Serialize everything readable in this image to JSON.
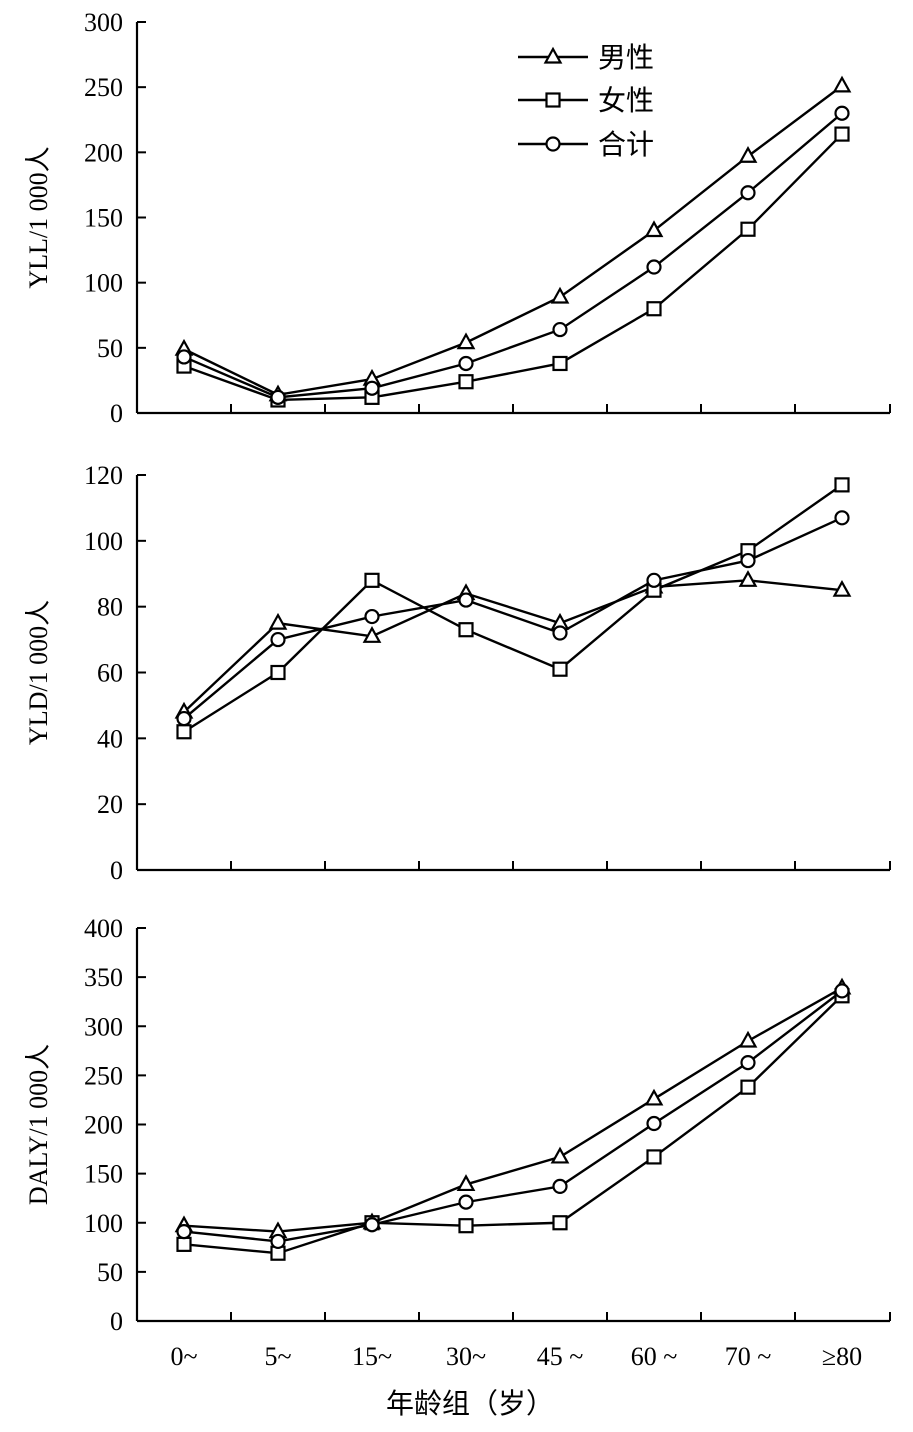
{
  "chart_data": [
    {
      "type": "line",
      "ylabel": "YLL/1 000人",
      "ylim": [
        0,
        300
      ],
      "yticks": [
        0,
        50,
        100,
        150,
        200,
        250,
        300
      ],
      "categories": [
        "0~",
        "5~",
        "15~",
        "30~",
        "45 ~",
        "60 ~",
        "70 ~",
        "≥80"
      ],
      "series": [
        {
          "name": "男性",
          "marker": "triangle",
          "values": [
            49,
            14,
            26,
            54,
            89,
            140,
            197,
            251
          ]
        },
        {
          "name": "女性",
          "marker": "square",
          "values": [
            36,
            10,
            12,
            24,
            38,
            80,
            141,
            214
          ]
        },
        {
          "name": "合计",
          "marker": "circle",
          "values": [
            43,
            12,
            19,
            38,
            64,
            112,
            169,
            230
          ]
        }
      ],
      "legend": {
        "position": "top-center",
        "entries": [
          "男性",
          "女性",
          "合计"
        ]
      }
    },
    {
      "type": "line",
      "ylabel": "YLD/1 000人",
      "ylim": [
        0,
        120
      ],
      "yticks": [
        0,
        20,
        40,
        60,
        80,
        100,
        120
      ],
      "categories": [
        "0~",
        "5~",
        "15~",
        "30~",
        "45 ~",
        "60 ~",
        "70 ~",
        "≥80"
      ],
      "series": [
        {
          "name": "男性",
          "marker": "triangle",
          "values": [
            48,
            75,
            71,
            84,
            75,
            86,
            88,
            85
          ]
        },
        {
          "name": "女性",
          "marker": "square",
          "values": [
            42,
            60,
            88,
            73,
            61,
            85,
            97,
            117
          ]
        },
        {
          "name": "合计",
          "marker": "circle",
          "values": [
            46,
            70,
            77,
            82,
            72,
            88,
            94,
            107
          ]
        }
      ]
    },
    {
      "type": "line",
      "ylabel": "DALY/1 000人",
      "ylim": [
        0,
        400
      ],
      "yticks": [
        0,
        50,
        100,
        150,
        200,
        250,
        300,
        350,
        400
      ],
      "xlabel": "年龄组（岁）",
      "categories": [
        "0~",
        "5~",
        "15~",
        "30~",
        "45 ~",
        "60 ~",
        "70 ~",
        "≥80"
      ],
      "series": [
        {
          "name": "男性",
          "marker": "triangle",
          "values": [
            97,
            91,
            100,
            139,
            167,
            226,
            285,
            339
          ]
        },
        {
          "name": "女性",
          "marker": "square",
          "values": [
            78,
            69,
            100,
            97,
            100,
            167,
            238,
            331
          ]
        },
        {
          "name": "合计",
          "marker": "circle",
          "values": [
            91,
            81,
            98,
            121,
            137,
            201,
            263,
            336
          ]
        }
      ]
    }
  ]
}
